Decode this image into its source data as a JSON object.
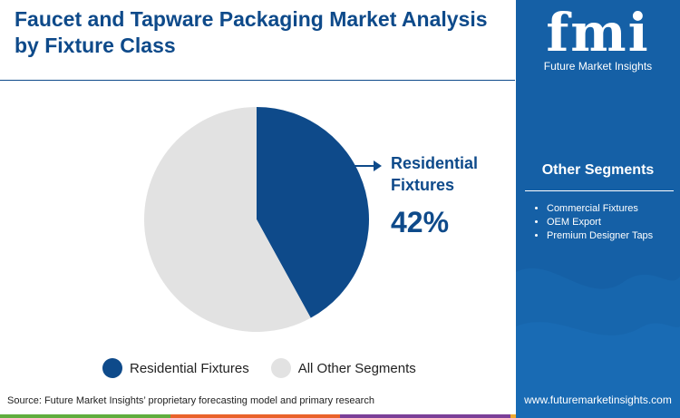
{
  "title": "Faucet and Tapware Packaging Market Analysis by Fixture Class",
  "callout": {
    "label": "Residential Fixtures",
    "value": "42%"
  },
  "source": "Source: Future Market Insights’ proprietary forecasting model and primary research",
  "sidebar": {
    "brand_mark": "fmi",
    "brand_name": "Future Market Insights",
    "other_segments_title": "Other Segments",
    "other_segments": [
      "Commercial Fixtures",
      "OEM Export",
      "Premium Designer Taps"
    ],
    "url": "www.futuremarketinsights.com"
  },
  "colors": {
    "primary": "#0e4a8a",
    "other": "#e2e2e2",
    "sidebar": "#1560a6",
    "bottom_bar": [
      "#5fae3e",
      "#e9622b",
      "#7b3f98",
      "#f0a830"
    ]
  },
  "chart_data": {
    "type": "pie",
    "title": "Faucet and Tapware Packaging Market Analysis by Fixture Class",
    "slices": [
      {
        "label": "Residential Fixtures",
        "value": 42,
        "color": "#0e4a8a"
      },
      {
        "label": "All Other Segments",
        "value": 58,
        "color": "#e2e2e2"
      }
    ],
    "legend": {
      "position": "bottom"
    }
  }
}
